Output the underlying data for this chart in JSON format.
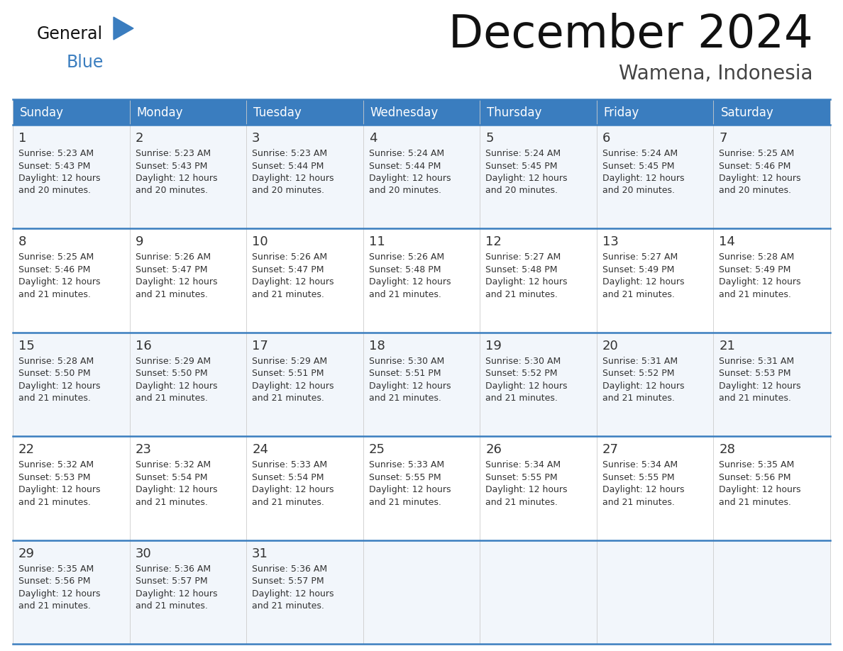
{
  "title": "December 2024",
  "subtitle": "Wamena, Indonesia",
  "header_color": "#3a7dbf",
  "header_text_color": "#ffffff",
  "cell_bg_even": "#f2f6fb",
  "cell_bg_odd": "#ffffff",
  "border_color": "#3a7dbf",
  "text_color": "#333333",
  "day_names": [
    "Sunday",
    "Monday",
    "Tuesday",
    "Wednesday",
    "Thursday",
    "Friday",
    "Saturday"
  ],
  "days": [
    {
      "day": 1,
      "col": 0,
      "row": 0,
      "sunrise": "5:23 AM",
      "sunset": "5:43 PM",
      "daylight": "12 hours and 20 minutes."
    },
    {
      "day": 2,
      "col": 1,
      "row": 0,
      "sunrise": "5:23 AM",
      "sunset": "5:43 PM",
      "daylight": "12 hours and 20 minutes."
    },
    {
      "day": 3,
      "col": 2,
      "row": 0,
      "sunrise": "5:23 AM",
      "sunset": "5:44 PM",
      "daylight": "12 hours and 20 minutes."
    },
    {
      "day": 4,
      "col": 3,
      "row": 0,
      "sunrise": "5:24 AM",
      "sunset": "5:44 PM",
      "daylight": "12 hours and 20 minutes."
    },
    {
      "day": 5,
      "col": 4,
      "row": 0,
      "sunrise": "5:24 AM",
      "sunset": "5:45 PM",
      "daylight": "12 hours and 20 minutes."
    },
    {
      "day": 6,
      "col": 5,
      "row": 0,
      "sunrise": "5:24 AM",
      "sunset": "5:45 PM",
      "daylight": "12 hours and 20 minutes."
    },
    {
      "day": 7,
      "col": 6,
      "row": 0,
      "sunrise": "5:25 AM",
      "sunset": "5:46 PM",
      "daylight": "12 hours and 20 minutes."
    },
    {
      "day": 8,
      "col": 0,
      "row": 1,
      "sunrise": "5:25 AM",
      "sunset": "5:46 PM",
      "daylight": "12 hours and 21 minutes."
    },
    {
      "day": 9,
      "col": 1,
      "row": 1,
      "sunrise": "5:26 AM",
      "sunset": "5:47 PM",
      "daylight": "12 hours and 21 minutes."
    },
    {
      "day": 10,
      "col": 2,
      "row": 1,
      "sunrise": "5:26 AM",
      "sunset": "5:47 PM",
      "daylight": "12 hours and 21 minutes."
    },
    {
      "day": 11,
      "col": 3,
      "row": 1,
      "sunrise": "5:26 AM",
      "sunset": "5:48 PM",
      "daylight": "12 hours and 21 minutes."
    },
    {
      "day": 12,
      "col": 4,
      "row": 1,
      "sunrise": "5:27 AM",
      "sunset": "5:48 PM",
      "daylight": "12 hours and 21 minutes."
    },
    {
      "day": 13,
      "col": 5,
      "row": 1,
      "sunrise": "5:27 AM",
      "sunset": "5:49 PM",
      "daylight": "12 hours and 21 minutes."
    },
    {
      "day": 14,
      "col": 6,
      "row": 1,
      "sunrise": "5:28 AM",
      "sunset": "5:49 PM",
      "daylight": "12 hours and 21 minutes."
    },
    {
      "day": 15,
      "col": 0,
      "row": 2,
      "sunrise": "5:28 AM",
      "sunset": "5:50 PM",
      "daylight": "12 hours and 21 minutes."
    },
    {
      "day": 16,
      "col": 1,
      "row": 2,
      "sunrise": "5:29 AM",
      "sunset": "5:50 PM",
      "daylight": "12 hours and 21 minutes."
    },
    {
      "day": 17,
      "col": 2,
      "row": 2,
      "sunrise": "5:29 AM",
      "sunset": "5:51 PM",
      "daylight": "12 hours and 21 minutes."
    },
    {
      "day": 18,
      "col": 3,
      "row": 2,
      "sunrise": "5:30 AM",
      "sunset": "5:51 PM",
      "daylight": "12 hours and 21 minutes."
    },
    {
      "day": 19,
      "col": 4,
      "row": 2,
      "sunrise": "5:30 AM",
      "sunset": "5:52 PM",
      "daylight": "12 hours and 21 minutes."
    },
    {
      "day": 20,
      "col": 5,
      "row": 2,
      "sunrise": "5:31 AM",
      "sunset": "5:52 PM",
      "daylight": "12 hours and 21 minutes."
    },
    {
      "day": 21,
      "col": 6,
      "row": 2,
      "sunrise": "5:31 AM",
      "sunset": "5:53 PM",
      "daylight": "12 hours and 21 minutes."
    },
    {
      "day": 22,
      "col": 0,
      "row": 3,
      "sunrise": "5:32 AM",
      "sunset": "5:53 PM",
      "daylight": "12 hours and 21 minutes."
    },
    {
      "day": 23,
      "col": 1,
      "row": 3,
      "sunrise": "5:32 AM",
      "sunset": "5:54 PM",
      "daylight": "12 hours and 21 minutes."
    },
    {
      "day": 24,
      "col": 2,
      "row": 3,
      "sunrise": "5:33 AM",
      "sunset": "5:54 PM",
      "daylight": "12 hours and 21 minutes."
    },
    {
      "day": 25,
      "col": 3,
      "row": 3,
      "sunrise": "5:33 AM",
      "sunset": "5:55 PM",
      "daylight": "12 hours and 21 minutes."
    },
    {
      "day": 26,
      "col": 4,
      "row": 3,
      "sunrise": "5:34 AM",
      "sunset": "5:55 PM",
      "daylight": "12 hours and 21 minutes."
    },
    {
      "day": 27,
      "col": 5,
      "row": 3,
      "sunrise": "5:34 AM",
      "sunset": "5:55 PM",
      "daylight": "12 hours and 21 minutes."
    },
    {
      "day": 28,
      "col": 6,
      "row": 3,
      "sunrise": "5:35 AM",
      "sunset": "5:56 PM",
      "daylight": "12 hours and 21 minutes."
    },
    {
      "day": 29,
      "col": 0,
      "row": 4,
      "sunrise": "5:35 AM",
      "sunset": "5:56 PM",
      "daylight": "12 hours and 21 minutes."
    },
    {
      "day": 30,
      "col": 1,
      "row": 4,
      "sunrise": "5:36 AM",
      "sunset": "5:57 PM",
      "daylight": "12 hours and 21 minutes."
    },
    {
      "day": 31,
      "col": 2,
      "row": 4,
      "sunrise": "5:36 AM",
      "sunset": "5:57 PM",
      "daylight": "12 hours and 21 minutes."
    }
  ]
}
